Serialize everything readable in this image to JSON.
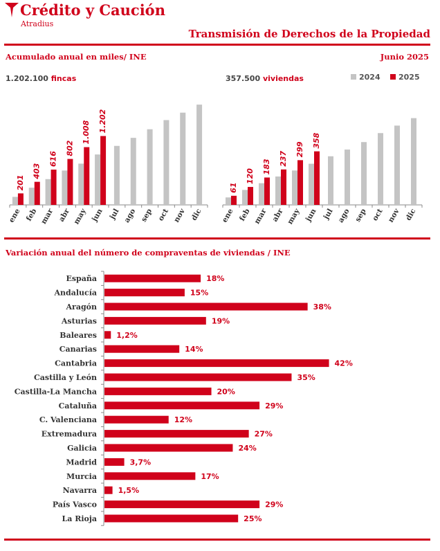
{
  "header": {
    "logo_text": "Crédito y Caución",
    "logo_sub": "Atradius",
    "title": "Transmisión de Derechos de la Propiedad",
    "subtitle_left": "Acumulado anual en miles/ INE",
    "subtitle_right": "Junio  2025"
  },
  "totals": {
    "fincas_value": "1.202.100",
    "fincas_unit": "fincas",
    "viviendas_value": "357.500",
    "viviendas_unit": "viviendas"
  },
  "colors": {
    "accent": "#d0021b",
    "gray": "#c4c4c4",
    "axis": "#888888"
  },
  "chart_data": [
    {
      "type": "bar",
      "title": "",
      "categories": [
        "ene",
        "feb",
        "mar",
        "abr",
        "may",
        "jun",
        "jul",
        "ago",
        "sep",
        "oct",
        "nov",
        "dic"
      ],
      "series": [
        {
          "name": "2024",
          "values": [
            140,
            300,
            450,
            600,
            720,
            880,
            1030,
            1170,
            1320,
            1480,
            1610,
            1750
          ]
        },
        {
          "name": "2025",
          "values": [
            201,
            403,
            616,
            802,
            1008,
            1202,
            null,
            null,
            null,
            null,
            null,
            null
          ]
        }
      ],
      "data_labels": [
        "201",
        "403",
        "616",
        "802",
        "1.008",
        "1.202"
      ],
      "ylim": [
        0,
        1800
      ]
    },
    {
      "type": "bar",
      "title": "",
      "categories": [
        "ene",
        "feb",
        "mar",
        "abr",
        "may",
        "jun",
        "jul",
        "ago",
        "sep",
        "oct",
        "nov",
        "dic"
      ],
      "series": [
        {
          "name": "2024",
          "values": [
            50,
            100,
            145,
            190,
            230,
            275,
            325,
            370,
            420,
            480,
            530,
            580
          ]
        },
        {
          "name": "2025",
          "values": [
            61,
            120,
            183,
            237,
            299,
            358,
            null,
            null,
            null,
            null,
            null,
            null
          ]
        }
      ],
      "data_labels": [
        "61",
        "120",
        "183",
        "237",
        "299",
        "358"
      ],
      "ylim": [
        0,
        620
      ]
    },
    {
      "type": "bar",
      "orientation": "horizontal",
      "title": "Variación anual del número de compraventas de viviendas / INE",
      "categories": [
        "España",
        "Andalucía",
        "Aragón",
        "Asturias",
        "Baleares",
        "Canarias",
        "Cantabria",
        "Castilla y León",
        "Castilla-La Mancha",
        "Cataluña",
        "C. Valenciana",
        "Extremadura",
        "Galicia",
        "Madrid",
        "Murcia",
        "Navarra",
        "País Vasco",
        "La Rioja"
      ],
      "values": [
        18,
        15,
        38,
        19,
        1.2,
        14,
        42,
        35,
        20,
        29,
        12,
        27,
        24,
        3.7,
        17,
        1.5,
        29,
        25
      ],
      "data_labels": [
        "18%",
        "15%",
        "38%",
        "19%",
        "1,2%",
        "14%",
        "42%",
        "35%",
        "20%",
        "29%",
        "12%",
        "27%",
        "24%",
        "3,7%",
        "17%",
        "1,5%",
        "29%",
        "25%"
      ],
      "xlim": [
        0,
        44
      ]
    }
  ]
}
